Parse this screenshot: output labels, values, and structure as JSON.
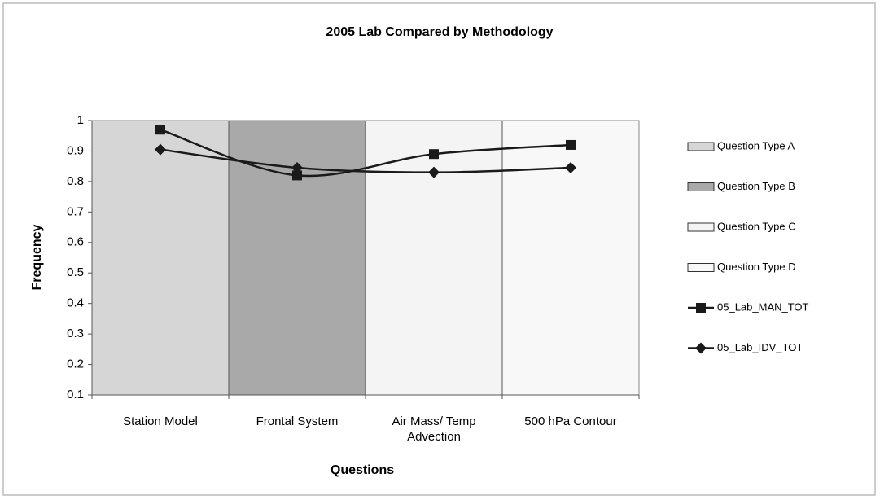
{
  "chart_data": {
    "type": "line",
    "title": "2005  Lab Compared by Methodology",
    "x_label": "Questions",
    "y_label": "Frequency",
    "categories": [
      "Station Model",
      "Frontal System",
      "Air Mass/ Temp Advection",
      "500 hPa Contour"
    ],
    "ylim": [
      0.1,
      1
    ],
    "yticks": [
      0.1,
      0.2,
      0.3,
      0.4,
      0.5,
      0.6,
      0.7,
      0.8,
      0.9,
      1
    ],
    "legend": "right",
    "series": [
      {
        "name": "Question Type A",
        "kind": "band",
        "color": "#d6d6d6",
        "values": [
          1,
          null,
          null,
          null
        ]
      },
      {
        "name": "Question Type B",
        "kind": "band",
        "color": "#a9a9a9",
        "values": [
          null,
          1,
          null,
          null
        ]
      },
      {
        "name": "Question Type C",
        "kind": "band",
        "color": "#f4f4f4",
        "values": [
          null,
          null,
          1,
          null
        ]
      },
      {
        "name": "Question Type D",
        "kind": "band",
        "color": "#f8f8f8",
        "values": [
          null,
          null,
          null,
          1
        ]
      },
      {
        "name": "05_Lab_MAN_TOT",
        "kind": "line",
        "marker": "square",
        "color": "#1a1a1a",
        "values": [
          0.97,
          0.82,
          0.89,
          0.92
        ]
      },
      {
        "name": "05_Lab_IDV_TOT",
        "kind": "line",
        "marker": "diamond",
        "color": "#1a1a1a",
        "values": [
          0.905,
          0.845,
          0.83,
          0.845
        ]
      }
    ]
  }
}
